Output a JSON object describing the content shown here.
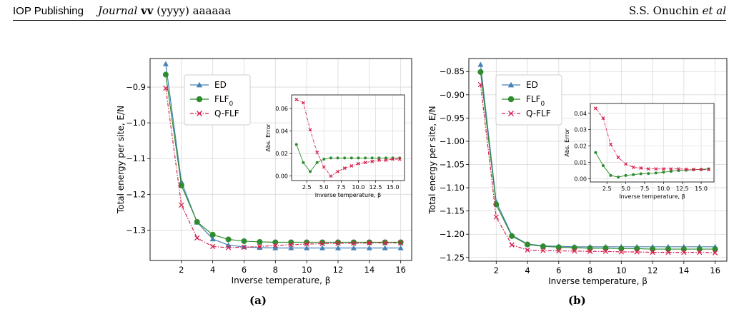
{
  "header": {
    "publisher": "IOP Publishing",
    "journal": "Journal",
    "volume": "vv",
    "year": "(yyyy)",
    "article": "aaaaaa",
    "authors": "S.S. Onuchin",
    "etal": "et al"
  },
  "captions": [
    "(a)",
    "(b)"
  ],
  "colors": {
    "ED": "#4682b4",
    "FLF0": "#2e8b2e",
    "QFLF": "#d6204e"
  },
  "chart_data": [
    {
      "type": "line",
      "panel": "(a)",
      "xlabel": "Inverse temperature, β",
      "ylabel": "Total energy per site, E/N",
      "xlim": [
        0,
        16.7
      ],
      "ylim": [
        -1.385,
        -0.82
      ],
      "xticks": [
        2,
        4,
        6,
        8,
        10,
        12,
        14,
        16
      ],
      "yticks": [
        -1.3,
        -1.2,
        -1.1,
        -1.0,
        -0.9
      ],
      "ytick_labels": [
        "−1.3",
        "−1.2",
        "−1.1",
        "−1.0",
        "−0.9"
      ],
      "grid": true,
      "legend_position": "top-left",
      "x": [
        1,
        2,
        3,
        4,
        5,
        6,
        7,
        8,
        9,
        10,
        11,
        12,
        13,
        14,
        15,
        16
      ],
      "series": [
        {
          "name": "ED",
          "marker": "triangle",
          "values": [
            -0.835,
            -1.165,
            -1.278,
            -1.325,
            -1.342,
            -1.347,
            -1.349,
            -1.35,
            -1.35,
            -1.35,
            -1.35,
            -1.35,
            -1.35,
            -1.35,
            -1.35,
            -1.35
          ]
        },
        {
          "name": "FLF0",
          "marker": "circle",
          "values": [
            -0.865,
            -1.175,
            -1.277,
            -1.313,
            -1.326,
            -1.331,
            -1.333,
            -1.334,
            -1.334,
            -1.334,
            -1.334,
            -1.334,
            -1.334,
            -1.334,
            -1.334,
            -1.334
          ]
        },
        {
          "name": "Q-FLF",
          "marker": "x",
          "values": [
            -0.903,
            -1.23,
            -1.322,
            -1.346,
            -1.349,
            -1.348,
            -1.346,
            -1.343,
            -1.341,
            -1.339,
            -1.338,
            -1.337,
            -1.337,
            -1.336,
            -1.336,
            -1.336
          ]
        }
      ],
      "inset": {
        "xlabel": "Inverse temperature, β",
        "ylabel": "Abs. Error",
        "xlim": [
          0.3,
          16.7
        ],
        "ylim": [
          -0.004,
          0.072
        ],
        "xticks": [
          2.5,
          5.0,
          7.5,
          10.0,
          12.5,
          15.0
        ],
        "xtick_labels": [
          "2.5",
          "5.0",
          "7.5",
          "10.0",
          "12.5",
          "15.0"
        ],
        "yticks": [
          0.0,
          0.02,
          0.04,
          0.06
        ],
        "ytick_labels": [
          "0.00",
          "0.02",
          "0.04",
          "0.06"
        ],
        "series": [
          {
            "name": "FLF0",
            "marker": "circle",
            "values": [
              0.028,
              0.012,
              0.004,
              0.012,
              0.015,
              0.016,
              0.016,
              0.016,
              0.016,
              0.016,
              0.016,
              0.016,
              0.016,
              0.016,
              0.016,
              0.016
            ]
          },
          {
            "name": "Q-FLF",
            "marker": "x",
            "values": [
              0.068,
              0.065,
              0.041,
              0.021,
              0.008,
              0.0,
              0.004,
              0.007,
              0.009,
              0.011,
              0.012,
              0.013,
              0.014,
              0.014,
              0.015,
              0.015
            ]
          }
        ]
      }
    },
    {
      "type": "line",
      "panel": "(b)",
      "xlabel": "Inverse temperature, β",
      "ylabel": "Total energy per site, E/N",
      "xlim": [
        0.25,
        16.75
      ],
      "ylim": [
        -1.258,
        -0.822
      ],
      "xticks": [
        2,
        4,
        6,
        8,
        10,
        12,
        14,
        16
      ],
      "yticks": [
        -1.25,
        -1.2,
        -1.15,
        -1.1,
        -1.05,
        -1.0,
        -0.95,
        -0.9,
        -0.85
      ],
      "ytick_labels": [
        "−1.25",
        "−1.20",
        "−1.15",
        "−1.10",
        "−1.05",
        "−1.00",
        "−0.95",
        "−0.90",
        "−0.85"
      ],
      "grid": true,
      "legend_position": "top-left",
      "x": [
        1,
        2,
        3,
        4,
        5,
        6,
        7,
        8,
        9,
        10,
        11,
        12,
        13,
        14,
        15,
        16
      ],
      "series": [
        {
          "name": "ED",
          "marker": "triangle",
          "values": [
            -0.835,
            -1.13,
            -1.202,
            -1.221,
            -1.225,
            -1.226,
            -1.227,
            -1.227,
            -1.227,
            -1.227,
            -1.227,
            -1.227,
            -1.227,
            -1.227,
            -1.227,
            -1.227
          ]
        },
        {
          "name": "FLF0",
          "marker": "circle",
          "values": [
            -0.851,
            -1.136,
            -1.204,
            -1.222,
            -1.226,
            -1.228,
            -1.229,
            -1.23,
            -1.23,
            -1.231,
            -1.231,
            -1.232,
            -1.232,
            -1.232,
            -1.232,
            -1.232
          ]
        },
        {
          "name": "Q-FLF",
          "marker": "x",
          "values": [
            -0.878,
            -1.163,
            -1.223,
            -1.234,
            -1.235,
            -1.236,
            -1.236,
            -1.237,
            -1.237,
            -1.238,
            -1.238,
            -1.239,
            -1.239,
            -1.239,
            -1.239,
            -1.24
          ]
        }
      ],
      "inset": {
        "xlabel": "Inverse temperature, β",
        "ylabel": "Abs. Error",
        "xlim": [
          0.3,
          16.7
        ],
        "ylim": [
          -0.002,
          0.046
        ],
        "xticks": [
          2.5,
          5.0,
          7.5,
          10.0,
          12.5,
          15.0
        ],
        "xtick_labels": [
          "2.5",
          "5.0",
          "7.5",
          "10.0",
          "12.5",
          "15.0"
        ],
        "yticks": [
          0.0,
          0.01,
          0.02,
          0.03,
          0.04
        ],
        "ytick_labels": [
          "0.00",
          "0.01",
          "0.02",
          "0.03",
          "0.04"
        ],
        "series": [
          {
            "name": "FLF0",
            "marker": "circle",
            "values": [
              0.016,
              0.008,
              0.002,
              0.001,
              0.002,
              0.0025,
              0.003,
              0.0032,
              0.0035,
              0.004,
              0.0045,
              0.005,
              0.0052,
              0.0055,
              0.0057,
              0.006
            ]
          },
          {
            "name": "Q-FLF",
            "marker": "x",
            "values": [
              0.043,
              0.037,
              0.021,
              0.013,
              0.009,
              0.007,
              0.0065,
              0.006,
              0.006,
              0.006,
              0.006,
              0.006,
              0.0058,
              0.0057,
              0.0056,
              0.0055
            ]
          }
        ]
      }
    }
  ]
}
